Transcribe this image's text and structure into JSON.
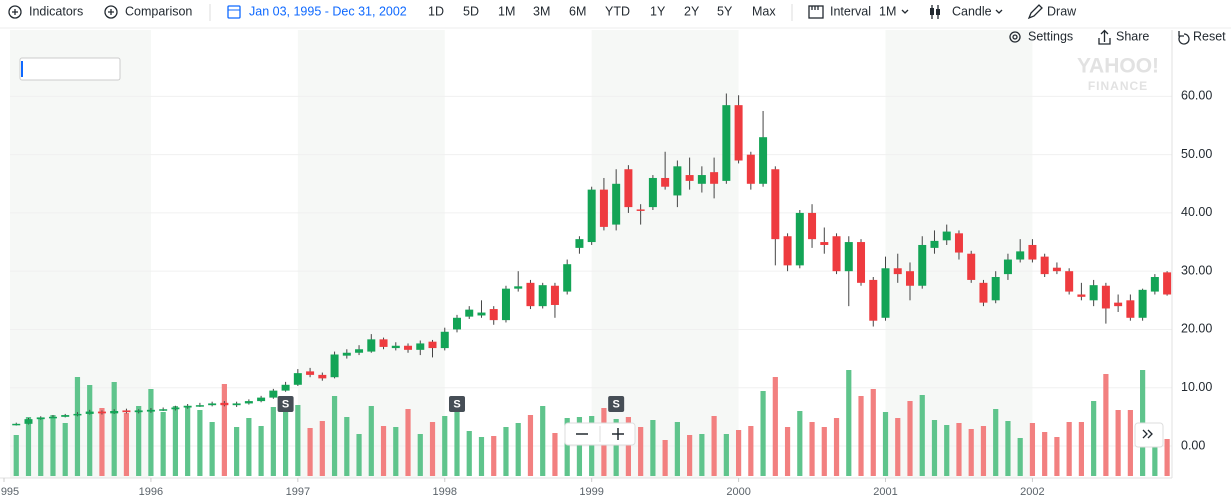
{
  "toolbar": {
    "indicators": "Indicators",
    "comparison": "Comparison",
    "date_range": "Jan 03, 1995 - Dec 31, 2002",
    "ranges": [
      "1D",
      "5D",
      "1M",
      "3M",
      "6M",
      "YTD",
      "1Y",
      "2Y",
      "5Y",
      "Max"
    ],
    "interval_label": "Interval",
    "interval": "1M",
    "chart_style": "Candle",
    "draw": "Draw",
    "settings": "Settings",
    "share": "Share",
    "reset": "Reset"
  },
  "watermark": [
    "YAHOO!",
    "FINANCE"
  ],
  "chart_data": {
    "type": "candlestick",
    "open": [
      3.6,
      3.8,
      4.6,
      4.9,
      5.0,
      5.3,
      5.5,
      5.9,
      5.6,
      6.1,
      5.8,
      5.9,
      6.2,
      6.3,
      6.6,
      6.9,
      7.0,
      7.4,
      7.0,
      7.3,
      7.7,
      8.3,
      9.5,
      10.5,
      12.8,
      12.2,
      11.8,
      15.5,
      16.0,
      16.2,
      18.3,
      16.8,
      17.2,
      16.5,
      17.9,
      16.8,
      20.0,
      22.2,
      22.4,
      23.5,
      21.6,
      27.0,
      28.0,
      24.0,
      27.5,
      26.5,
      34.0,
      35.0,
      44.0,
      38.0,
      47.5,
      40.6,
      41.0,
      46.0,
      43.0,
      46.5,
      45.0,
      47.0,
      45.5,
      58.5,
      50.0,
      45.0,
      47.5,
      36.0,
      31.0,
      40.0,
      35.0,
      36.0,
      30.0,
      35.0,
      28.5,
      22.0,
      30.5,
      30.0,
      27.5,
      34.0,
      35.3,
      36.5,
      33.0,
      28.0,
      25.0,
      29.5,
      32.0,
      34.5,
      32.5,
      30.6,
      30.0,
      26.0,
      25.0,
      27.5,
      24.6,
      25.0,
      22.0,
      26.5,
      29.8
    ],
    "high": [
      4.0,
      4.8,
      5.1,
      5.3,
      5.5,
      5.8,
      6.2,
      6.1,
      6.3,
      6.4,
      6.3,
      6.5,
      6.6,
      6.9,
      7.2,
      7.4,
      7.6,
      7.7,
      7.6,
      8.0,
      8.6,
      9.8,
      11.0,
      13.2,
      13.4,
      12.6,
      16.2,
      16.6,
      17.3,
      19.2,
      18.6,
      17.8,
      17.6,
      18.1,
      18.2,
      20.3,
      22.5,
      24.0,
      25.0,
      24.0,
      27.5,
      30.0,
      28.5,
      28.0,
      28.0,
      32.0,
      36.0,
      44.5,
      46.0,
      47.5,
      48.2,
      41.5,
      46.5,
      50.5,
      49.0,
      49.5,
      48.0,
      49.5,
      60.5,
      60.2,
      50.5,
      57.5,
      48.0,
      36.5,
      40.5,
      41.5,
      37.5,
      36.5,
      36.0,
      35.5,
      29.0,
      32.5,
      33.0,
      31.5,
      36.0,
      37.0,
      38.0,
      37.0,
      33.5,
      28.5,
      30.0,
      33.0,
      35.5,
      35.5,
      33.0,
      31.5,
      30.5,
      28.0,
      28.5,
      28.0,
      26.0,
      26.0,
      27.0,
      29.5,
      30.0
    ],
    "low": [
      3.5,
      3.7,
      4.5,
      4.8,
      4.9,
      5.1,
      5.4,
      5.4,
      5.5,
      5.6,
      5.6,
      5.7,
      6.0,
      6.1,
      6.4,
      6.7,
      6.8,
      6.8,
      6.7,
      7.1,
      7.5,
      8.1,
      9.3,
      10.3,
      11.8,
      11.2,
      11.6,
      15.0,
      15.6,
      16.0,
      16.6,
      16.4,
      16.0,
      15.6,
      15.2,
      16.4,
      19.5,
      21.8,
      22.0,
      20.8,
      21.2,
      26.5,
      23.5,
      23.6,
      22.0,
      26.0,
      33.0,
      34.5,
      37.0,
      37.0,
      40.0,
      38.0,
      40.5,
      44.0,
      41.0,
      44.0,
      43.5,
      42.5,
      45.0,
      48.5,
      44.0,
      44.5,
      31.0,
      30.0,
      30.5,
      34.0,
      33.0,
      29.5,
      24.0,
      27.5,
      20.5,
      21.5,
      28.0,
      25.0,
      27.0,
      33.0,
      34.5,
      32.0,
      28.0,
      24.0,
      24.5,
      28.5,
      31.5,
      31.5,
      29.0,
      29.5,
      26.0,
      25.0,
      24.0,
      21.0,
      23.0,
      21.5,
      21.5,
      26.0,
      25.8
    ],
    "close": [
      3.8,
      4.6,
      4.9,
      5.0,
      5.3,
      5.5,
      5.9,
      5.6,
      6.0,
      5.8,
      6.1,
      6.2,
      6.3,
      6.6,
      6.9,
      7.0,
      7.3,
      7.0,
      7.3,
      7.7,
      8.3,
      9.5,
      10.5,
      12.5,
      12.2,
      11.6,
      15.7,
      16.0,
      16.6,
      18.3,
      17.0,
      17.2,
      16.5,
      17.6,
      16.8,
      19.6,
      22.0,
      23.4,
      22.9,
      21.6,
      27.0,
      27.4,
      24.0,
      27.6,
      24.2,
      31.2,
      35.5,
      44.0,
      37.6,
      45.0,
      41.0,
      40.4,
      46.0,
      44.5,
      48.0,
      45.5,
      46.5,
      45.0,
      58.5,
      49.0,
      45.0,
      53.0,
      35.5,
      31.0,
      40.0,
      35.5,
      34.5,
      30.0,
      35.0,
      28.0,
      21.5,
      30.5,
      29.5,
      27.5,
      34.5,
      35.2,
      36.8,
      33.2,
      28.5,
      24.6,
      29.0,
      32.0,
      33.4,
      32.0,
      29.5,
      30.0,
      26.5,
      25.6,
      27.6,
      23.6,
      24.0,
      22.0,
      26.8,
      29.0,
      26.0
    ],
    "volume": [
      4.1,
      5.9,
      5.8,
      6.1,
      5.3,
      9.9,
      9.1,
      6.8,
      9.4,
      6.3,
      7.0,
      8.7,
      6.4,
      7.0,
      7.0,
      6.6,
      5.4,
      9.2,
      4.9,
      5.8,
      5.0,
      6.9,
      7.2,
      7.1,
      4.8,
      5.5,
      8.0,
      5.9,
      4.2,
      7.0,
      5.0,
      4.9,
      6.7,
      4.2,
      5.4,
      6.0,
      6.5,
      4.5,
      3.9,
      4.0,
      4.9,
      5.3,
      6.1,
      7.0,
      4.3,
      5.8,
      5.9,
      6.0,
      6.8,
      5.7,
      5.9,
      4.9,
      5.6,
      3.6,
      5.4,
      4.1,
      4.2,
      6.0,
      4.2,
      4.6,
      5.0,
      8.5,
      9.9,
      4.9,
      6.5,
      5.4,
      4.9,
      5.8,
      10.6,
      8.0,
      8.7,
      6.4,
      5.8,
      7.5,
      8.1,
      5.6,
      5.1,
      5.3,
      4.7,
      5.0,
      6.7,
      5.5,
      3.8,
      5.3,
      4.4,
      3.9,
      5.4,
      5.4,
      7.5,
      10.2,
      6.6,
      6.6,
      10.6,
      5.2,
      3.7
    ],
    "up_color": "#13a456",
    "down_color": "#ee3b3f",
    "volume_up_color": "#5fc48c",
    "volume_down_color": "#f28080",
    "xlim": [
      -1,
      94.4
    ],
    "xticks": [
      {
        "value": -1,
        "label": "995"
      },
      {
        "value": 11,
        "label": "1996"
      },
      {
        "value": 23,
        "label": "1997"
      },
      {
        "value": 35,
        "label": "1998"
      },
      {
        "value": 47,
        "label": "1999"
      },
      {
        "value": 59,
        "label": "2000"
      },
      {
        "value": 71,
        "label": "2001"
      },
      {
        "value": 83,
        "label": "2002"
      }
    ],
    "ylim": [
      -5.5,
      71.4
    ],
    "yticks": [
      {
        "value": 0,
        "label": "0.00"
      },
      {
        "value": 10,
        "label": "10.00"
      },
      {
        "value": 20,
        "label": "20.00"
      },
      {
        "value": 30,
        "label": "30.00"
      },
      {
        "value": 40,
        "label": "40.00"
      },
      {
        "value": 50,
        "label": "50.00"
      },
      {
        "value": 60,
        "label": "60.00"
      }
    ],
    "grid": true,
    "events": [
      {
        "index": 22,
        "label": "S"
      },
      {
        "index": 36,
        "label": "S"
      },
      {
        "index": 49,
        "label": "S"
      }
    ]
  }
}
